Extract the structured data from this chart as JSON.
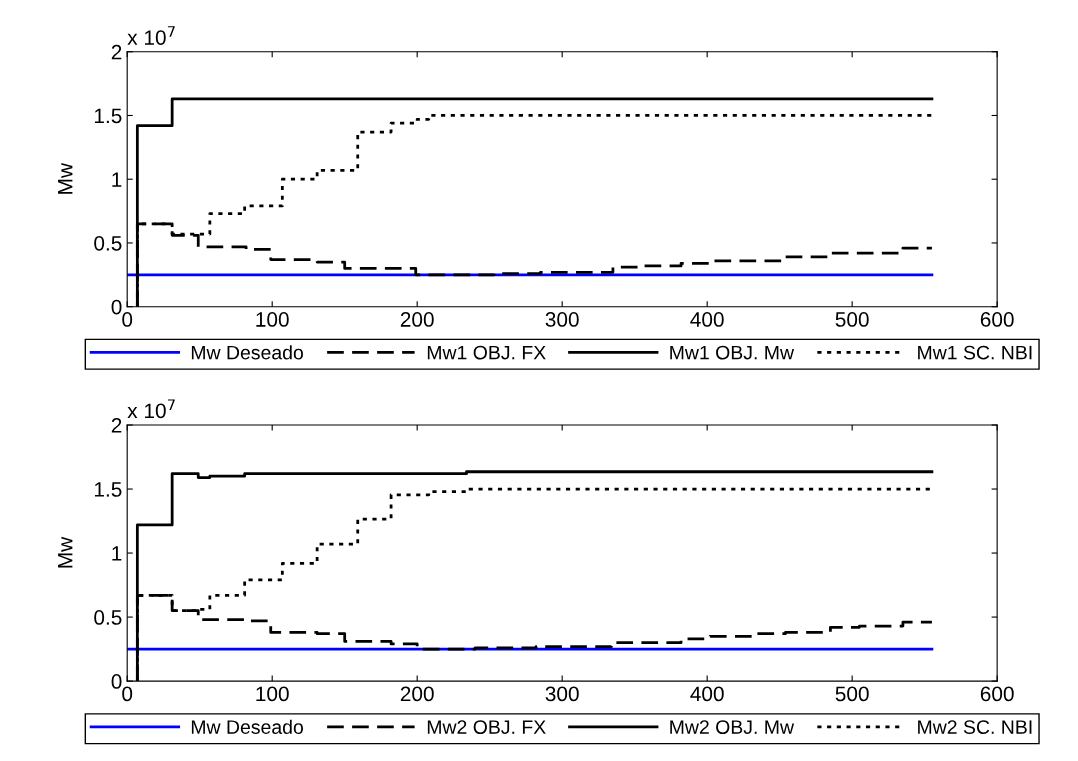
{
  "chart_data": [
    {
      "type": "step",
      "ylabel": "Mw",
      "annotations": [
        "x 10$^{7}$"
      ],
      "xlim": [
        0,
        600
      ],
      "xticks": [
        0,
        100,
        200,
        300,
        400,
        500,
        600
      ],
      "ylim": [
        0,
        2
      ],
      "yticks": [
        0,
        0.5,
        1,
        1.5,
        2
      ],
      "legend": "bottom",
      "grid": false,
      "series": [
        {
          "name": "Mw Deseado",
          "type": "line",
          "color": "#0000ff",
          "line_style": "solid",
          "x": [
            0,
            555
          ],
          "values": [
            0.25,
            0.25
          ]
        },
        {
          "name": "Mw1 OBJ. FX",
          "color": "#000000",
          "line_style": "dashed",
          "x": [
            7,
            7,
            31,
            49,
            82,
            99,
            131,
            150,
            199,
            253,
            285,
            335,
            352,
            382,
            402,
            454,
            485,
            535,
            555
          ],
          "values": [
            0,
            0.65,
            0.56,
            0.47,
            0.45,
            0.37,
            0.35,
            0.3,
            0.25,
            0.26,
            0.27,
            0.31,
            0.32,
            0.34,
            0.36,
            0.39,
            0.42,
            0.46,
            0.46
          ]
        },
        {
          "name": "Mw1 OBJ. Mw",
          "color": "#000000",
          "line_style": "solid",
          "x": [
            7,
            7,
            31,
            555
          ],
          "values": [
            0,
            1.42,
            1.63,
            1.63
          ]
        },
        {
          "name": "Mw1 SC. NBI",
          "color": "#000000",
          "line_style": "dotted",
          "x": [
            7,
            7,
            31,
            57,
            81,
            107,
            131,
            159,
            182,
            200,
            208,
            555
          ],
          "values": [
            0,
            0.65,
            0.57,
            0.73,
            0.79,
            1.0,
            1.07,
            1.37,
            1.44,
            1.47,
            1.5,
            1.5
          ]
        }
      ]
    },
    {
      "type": "step",
      "ylabel": "Mw",
      "annotations": [
        "x 10$^{7}$"
      ],
      "xlim": [
        0,
        600
      ],
      "xticks": [
        0,
        100,
        200,
        300,
        400,
        500,
        600
      ],
      "ylim": [
        0,
        2
      ],
      "yticks": [
        0,
        0.5,
        1,
        1.5,
        2
      ],
      "legend": "bottom",
      "grid": false,
      "series": [
        {
          "name": "Mw Deseado",
          "type": "line",
          "color": "#0000ff",
          "line_style": "solid",
          "x": [
            0,
            555
          ],
          "values": [
            0.25,
            0.25
          ]
        },
        {
          "name": "Mw2 OBJ. FX",
          "color": "#000000",
          "line_style": "dashed",
          "x": [
            7,
            7,
            31,
            49,
            81,
            99,
            131,
            150,
            182,
            200,
            240,
            282,
            334,
            382,
            402,
            434,
            454,
            485,
            505,
            535,
            555
          ],
          "values": [
            0,
            0.67,
            0.55,
            0.48,
            0.47,
            0.38,
            0.37,
            0.31,
            0.29,
            0.25,
            0.26,
            0.27,
            0.3,
            0.33,
            0.35,
            0.37,
            0.38,
            0.42,
            0.43,
            0.46,
            0.46
          ]
        },
        {
          "name": "Mw2 OBJ. Mw",
          "color": "#000000",
          "line_style": "solid",
          "x": [
            7,
            7,
            31,
            49,
            57,
            81,
            234,
            555
          ],
          "values": [
            0,
            1.22,
            1.62,
            1.59,
            1.6,
            1.62,
            1.635,
            1.635
          ]
        },
        {
          "name": "Mw2 SC. NBI",
          "color": "#000000",
          "line_style": "dotted",
          "x": [
            7,
            7,
            31,
            49,
            57,
            81,
            107,
            131,
            159,
            182,
            208,
            234,
            555
          ],
          "values": [
            0,
            0.67,
            0.55,
            0.56,
            0.67,
            0.79,
            0.92,
            1.07,
            1.265,
            1.455,
            1.48,
            1.5,
            1.5
          ]
        }
      ]
    }
  ]
}
